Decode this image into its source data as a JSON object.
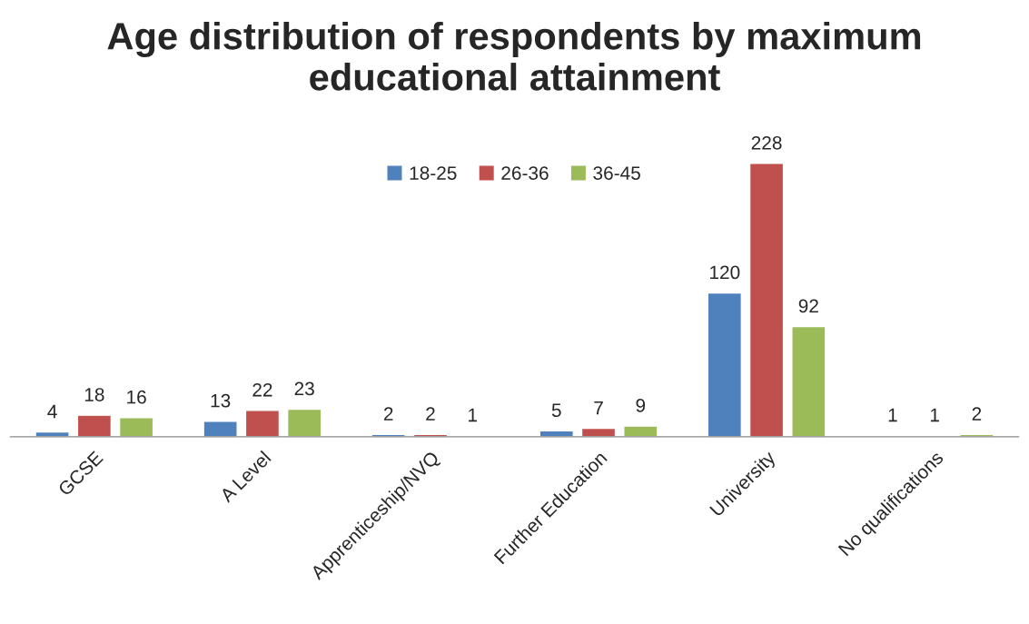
{
  "chart_data": {
    "type": "bar",
    "title": "Age distribution of respondents by maximum educational attainment",
    "categories": [
      "GCSE",
      "A Level",
      "Apprenticeship/NVQ",
      "Further Education",
      "University",
      "No qualifications"
    ],
    "series": [
      {
        "name": "18-25",
        "color": "#4f81bd",
        "values": [
          4,
          13,
          2,
          5,
          120,
          1
        ]
      },
      {
        "name": "26-36",
        "color": "#c0504d",
        "values": [
          18,
          22,
          2,
          7,
          228,
          1
        ]
      },
      {
        "name": "36-45",
        "color": "#9bbb59",
        "values": [
          16,
          23,
          1,
          9,
          92,
          2
        ]
      }
    ],
    "data_labels": true,
    "legend": "top",
    "grid": false,
    "tick_labels": "x"
  }
}
